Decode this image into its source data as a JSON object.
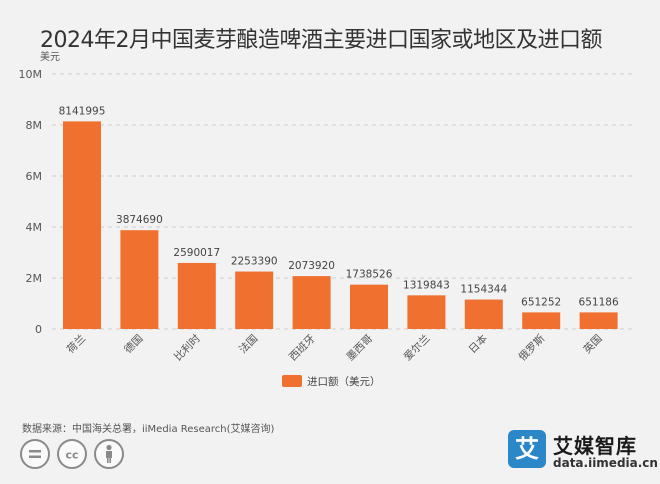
{
  "header": {
    "title": "2024年2月中国麦芽酿造啤酒主要进口国家或地区及进口额"
  },
  "chart_data": {
    "type": "bar",
    "unit_label": "美元",
    "categories": [
      "荷兰",
      "德国",
      "比利时",
      "法国",
      "西班牙",
      "墨西哥",
      "爱尔兰",
      "日本",
      "俄罗斯",
      "英国"
    ],
    "series": [
      {
        "name": "进口额（美元）",
        "color": "#f07030",
        "values": [
          8141995,
          3874690,
          2590017,
          2253390,
          2073920,
          1738526,
          1319843,
          1154344,
          651252,
          651186
        ]
      }
    ],
    "ylim": [
      0,
      10000000
    ],
    "yticks": [
      0,
      2000000,
      4000000,
      6000000,
      8000000,
      10000000
    ],
    "ytick_labels": [
      "0",
      "2M",
      "4M",
      "6M",
      "8M",
      "10M"
    ],
    "grid": true,
    "legend_position": "bottom-center"
  },
  "footer": {
    "source": "数据来源：中国海关总署，iiMedia Research(艾媒咨询)",
    "brand_logo_char": "艾",
    "brand_name": "艾媒智库",
    "brand_url": "data.iimedia.cn"
  },
  "colors": {
    "bar": "#f07030",
    "grid": "#cfcfcf",
    "axis_text": "#555555",
    "brand": "#2b87c7"
  }
}
